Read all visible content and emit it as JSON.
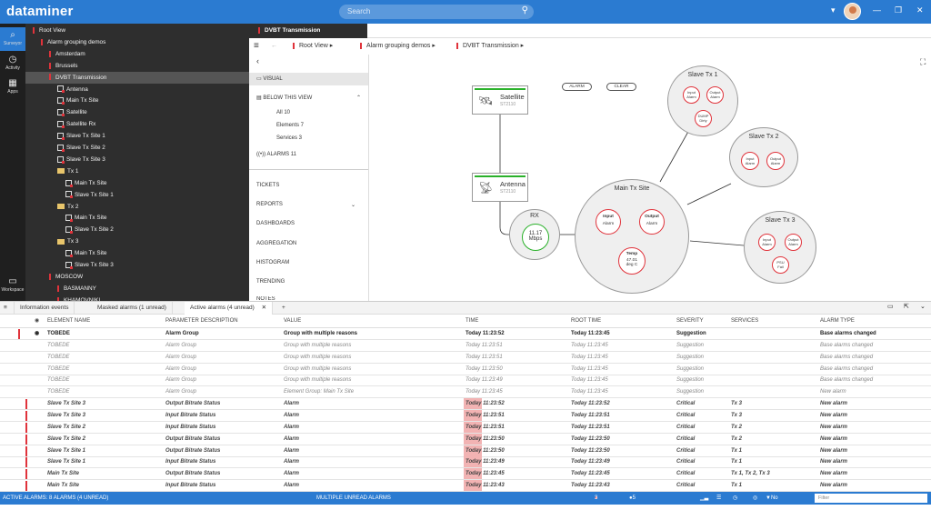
{
  "app": {
    "name": "dataminer",
    "search_placeholder": "Search"
  },
  "leftnav": [
    {
      "label": "Surveyor",
      "icon": "surveyor-icon"
    },
    {
      "label": "Activity",
      "icon": "activity-icon"
    },
    {
      "label": "Apps",
      "icon": "apps-icon"
    },
    {
      "label": "Workspace",
      "icon": "workspace-icon"
    }
  ],
  "tree": [
    {
      "label": "Root View",
      "indent": 0,
      "kind": "bar"
    },
    {
      "label": "Alarm grouping demos",
      "indent": 1,
      "kind": "bar"
    },
    {
      "label": "Amsterdam",
      "indent": 2,
      "kind": "bar"
    },
    {
      "label": "Brussels",
      "indent": 2,
      "kind": "bar"
    },
    {
      "label": "DVBT Transmission",
      "indent": 2,
      "kind": "bar",
      "selected": true
    },
    {
      "label": "Antenna",
      "indent": 3,
      "kind": "elem"
    },
    {
      "label": "Main Tx Site",
      "indent": 3,
      "kind": "elem"
    },
    {
      "label": "Satellite",
      "indent": 3,
      "kind": "elem"
    },
    {
      "label": "Satellite Rx",
      "indent": 3,
      "kind": "elem"
    },
    {
      "label": "Slave Tx Site 1",
      "indent": 3,
      "kind": "elem"
    },
    {
      "label": "Slave Tx Site 2",
      "indent": 3,
      "kind": "elem"
    },
    {
      "label": "Slave Tx Site 3",
      "indent": 3,
      "kind": "elem"
    },
    {
      "label": "Tx 1",
      "indent": 3,
      "kind": "group"
    },
    {
      "label": "Main Tx Site",
      "indent": 4,
      "kind": "elem"
    },
    {
      "label": "Slave Tx Site 1",
      "indent": 4,
      "kind": "elem"
    },
    {
      "label": "Tx 2",
      "indent": 3,
      "kind": "group"
    },
    {
      "label": "Main Tx Site",
      "indent": 4,
      "kind": "elem"
    },
    {
      "label": "Slave Tx Site 2",
      "indent": 4,
      "kind": "elem"
    },
    {
      "label": "Tx 3",
      "indent": 3,
      "kind": "group"
    },
    {
      "label": "Main Tx Site",
      "indent": 4,
      "kind": "elem"
    },
    {
      "label": "Slave Tx Site 3",
      "indent": 4,
      "kind": "elem"
    },
    {
      "label": "MOSCOW",
      "indent": 2,
      "kind": "bar"
    },
    {
      "label": "BASMANNY",
      "indent": 3,
      "kind": "bar"
    },
    {
      "label": "KHAMOVNIKI",
      "indent": 3,
      "kind": "bar"
    }
  ],
  "view_tab": "DVBT Transmission",
  "breadcrumb": [
    "Root View",
    "Alarm grouping demos",
    "DVBT Transmission"
  ],
  "panel": {
    "visual": "VISUAL",
    "below": "BELOW THIS VIEW",
    "all": "All 10",
    "elements": "Elements 7",
    "services": "Services 3",
    "alarms": "ALARMS 11",
    "menu": [
      "TICKETS",
      "REPORTS",
      "DASHBOARDS",
      "AGGREGATION",
      "HISTOGRAM",
      "TRENDING",
      "NOTES"
    ]
  },
  "visual": {
    "alarm_btn": "ALARM",
    "clear_btn": "CLEAR",
    "satellite": {
      "title": "Satellite",
      "sub": "ST2110"
    },
    "antenna": {
      "title": "Antenna",
      "sub": "ST2110"
    },
    "rx": {
      "title": "RX",
      "value": "11.17",
      "unit": "Mbps"
    },
    "main": {
      "title": "Main Tx Site",
      "input": [
        "Input",
        "Alarm"
      ],
      "output": [
        "Output",
        "Alarm"
      ],
      "temp": [
        "Temp",
        "47.01",
        "deg C"
      ]
    },
    "slave1": {
      "title": "Slave Tx 1",
      "input": [
        "Input",
        "Alarm"
      ],
      "output": [
        "Output",
        "Alarm"
      ],
      "dump": [
        "DUMP",
        "Dirty"
      ]
    },
    "slave2": {
      "title": "Slave Tx 2",
      "input": [
        "Input",
        "Alarm"
      ],
      "output": [
        "Output",
        "Alarm"
      ]
    },
    "slave3": {
      "title": "Slave Tx 3",
      "input": [
        "Input",
        "Alarm"
      ],
      "output": [
        "Output",
        "Alarm"
      ],
      "psu": [
        "PSU",
        "Fail"
      ]
    }
  },
  "tabs": [
    "Information events",
    "Masked alarms (1 unread)",
    "Active alarms (4 unread)",
    "+"
  ],
  "columns": [
    "ELEMENT NAME",
    "PARAMETER DESCRIPTION",
    "VALUE",
    "TIME",
    "ROOT TIME",
    "SEVERITY",
    "SERVICES",
    "ALARM TYPE"
  ],
  "rows": [
    [
      "TOBEDE",
      "Alarm Group",
      "Group with multiple reasons",
      "Today 11:23:52",
      "Today 11:23:45",
      "Suggestion",
      "",
      "Base alarms changed"
    ],
    [
      "TOBEDE",
      "Alarm Group",
      "Group with multiple reasons",
      "Today 11:23:51",
      "Today 11:23:45",
      "Suggestion",
      "",
      "Base alarms changed"
    ],
    [
      "TOBEDE",
      "Alarm Group",
      "Group with multiple reasons",
      "Today 11:23:51",
      "Today 11:23:45",
      "Suggestion",
      "",
      "Base alarms changed"
    ],
    [
      "TOBEDE",
      "Alarm Group",
      "Group with multiple reasons",
      "Today 11:23:50",
      "Today 11:23:45",
      "Suggestion",
      "",
      "Base alarms changed"
    ],
    [
      "TOBEDE",
      "Alarm Group",
      "Group with multiple reasons",
      "Today 11:23:49",
      "Today 11:23:45",
      "Suggestion",
      "",
      "Base alarms changed"
    ],
    [
      "TOBEDE",
      "Alarm Group",
      "Element Group: Main Tx Site",
      "Today 11:23:45",
      "Today 11:23:45",
      "Suggestion",
      "",
      "New alarm"
    ],
    [
      "Slave Tx Site 3",
      "Output Bitrate Status",
      "Alarm",
      "Today 11:23:52",
      "Today 11:23:52",
      "Critical",
      "Tx 3",
      "New alarm"
    ],
    [
      "Slave Tx Site 3",
      "Input Bitrate Status",
      "Alarm",
      "Today 11:23:51",
      "Today 11:23:51",
      "Critical",
      "Tx 3",
      "New alarm"
    ],
    [
      "Slave Tx Site 2",
      "Input Bitrate Status",
      "Alarm",
      "Today 11:23:51",
      "Today 11:23:51",
      "Critical",
      "Tx 2",
      "New alarm"
    ],
    [
      "Slave Tx Site 2",
      "Output Bitrate Status",
      "Alarm",
      "Today 11:23:50",
      "Today 11:23:50",
      "Critical",
      "Tx 2",
      "New alarm"
    ],
    [
      "Slave Tx Site 1",
      "Output Bitrate Status",
      "Alarm",
      "Today 11:23:50",
      "Today 11:23:50",
      "Critical",
      "Tx 1",
      "New alarm"
    ],
    [
      "Slave Tx Site 1",
      "Input Bitrate Status",
      "Alarm",
      "Today 11:23:49",
      "Today 11:23:49",
      "Critical",
      "Tx 1",
      "New alarm"
    ],
    [
      "Main Tx Site",
      "Output Bitrate Status",
      "Alarm",
      "Today 11:23:45",
      "Today 11:23:45",
      "Critical",
      "Tx 1, Tx 2, Tx 3",
      "New alarm"
    ],
    [
      "Main Tx Site",
      "Input Bitrate Status",
      "Alarm",
      "Today 11:23:43",
      "Today 11:23:43",
      "Critical",
      "Tx 1",
      "New alarm"
    ]
  ],
  "status": {
    "left": "ACTIVE ALARMS: 8 ALARMS (4 UNREAD)",
    "center": "MULTIPLE UNREAD ALARMS",
    "critical": "3 Critical",
    "suggestion": "5 SUGGESTION",
    "rca": "No RCA filter",
    "filter_placeholder": "Filter"
  },
  "colors": {
    "accent": "#2b7bd1",
    "critical": "#e0333b",
    "ok": "#2ab12a"
  }
}
